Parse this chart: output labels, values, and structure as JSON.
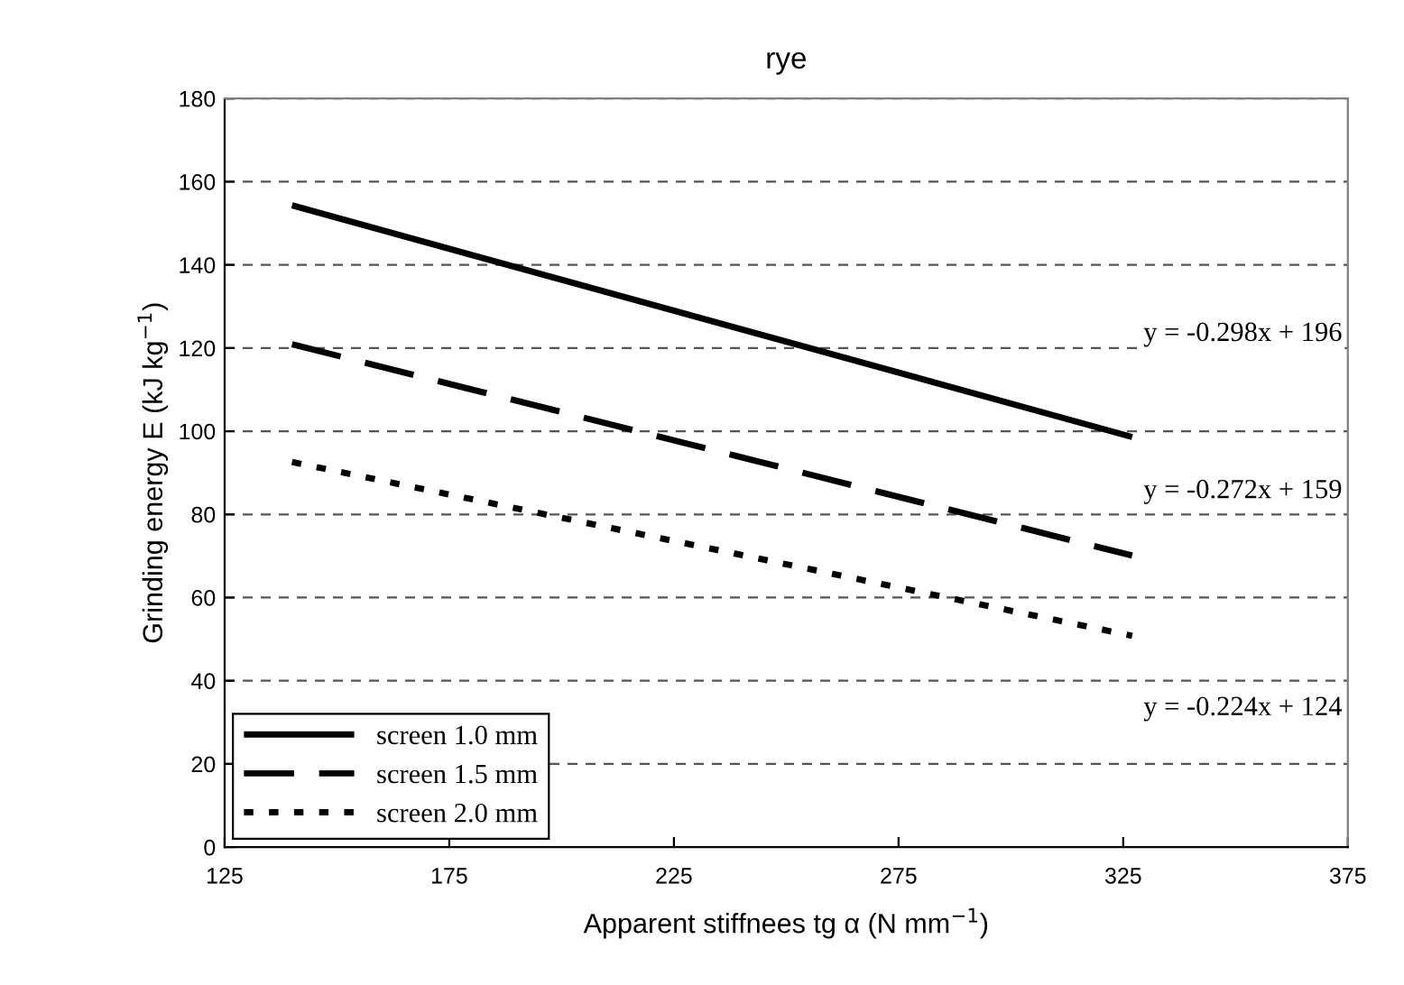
{
  "chart_data": {
    "type": "line",
    "title": "rye",
    "xlabel": "Apparent stiffnees tg α (N mm$^{−1}$)",
    "ylabel": "Grinding energy E (kJ kg$^{−1}$)",
    "x": [
      140,
      327
    ],
    "series": [
      {
        "name": "screen 1.0 mm",
        "color": "#000000",
        "values": [
          154.3,
          98.6
        ],
        "line_style": "solid"
      },
      {
        "name": "screen 1.5 mm",
        "color": "#000000",
        "values": [
          120.9,
          70.1
        ],
        "line_style": "dashed"
      },
      {
        "name": "screen 2.0 mm",
        "color": "#000000",
        "values": [
          92.6,
          50.8
        ],
        "line_style": "dotted"
      }
    ],
    "annotations": [
      "y = -0.298x + 196",
      "y = -0.272x + 159",
      "y = -0.224x + 124"
    ],
    "xlim": [
      125,
      375
    ],
    "xticks": [
      125,
      175,
      225,
      275,
      325,
      375
    ],
    "ylim": [
      0,
      180
    ],
    "yticks": [
      0,
      20,
      40,
      60,
      80,
      100,
      120,
      140,
      160,
      180
    ],
    "grid": "y",
    "legend": "bottom left",
    "marker": "none"
  }
}
